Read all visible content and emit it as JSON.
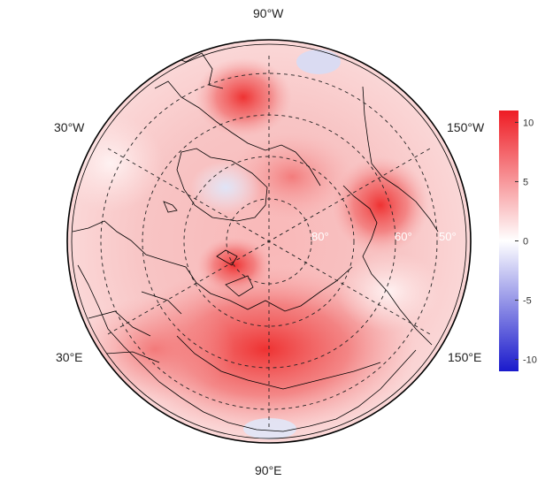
{
  "map": {
    "projection": "north-polar-stereographic",
    "field_colors": {
      "strong_positive": "#ee1c24",
      "positive": "#f6a3a3",
      "neutral": "#ffffff",
      "negative": "#5b5bd6"
    }
  },
  "lon_labels": {
    "top": "90°W",
    "upper_left": "30°W",
    "upper_right": "150°W",
    "lower_left": "30°E",
    "lower_right": "150°E",
    "bottom": "90°E"
  },
  "lat_labels": {
    "inner": "80°",
    "middle": "60°",
    "outer": "50°"
  },
  "colorbar": {
    "min": -11,
    "max": 11,
    "ticks": [
      "10",
      "5",
      "0",
      "-5",
      "-10"
    ],
    "colors": {
      "max": "#ee1c24",
      "mid": "#ffffff",
      "min": "#1a1acc"
    }
  }
}
